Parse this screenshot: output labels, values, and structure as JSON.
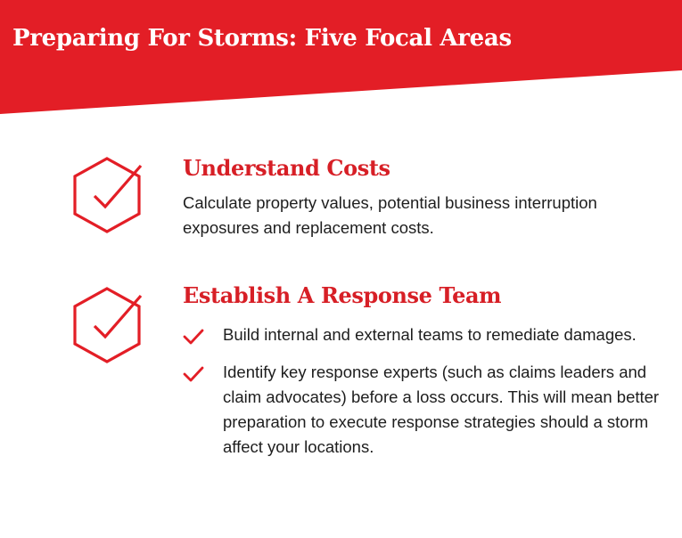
{
  "header": {
    "title": "Preparing For Storms: Five Focal Areas"
  },
  "sections": [
    {
      "icon": "hexagon-check-icon",
      "heading": "Understand Costs",
      "body": "Calculate property values, potential business interruption exposures and replacement costs."
    },
    {
      "icon": "hexagon-check-icon",
      "heading": "Establish A Response Team",
      "bullets": [
        "Build internal and external teams to remediate damages.",
        "Identify key response experts (such as claims leaders and claim advocates) before a loss occurs. This will mean better preparation to execute response strategies should a storm affect your locations."
      ]
    }
  ],
  "colors": {
    "brand_red": "#e31e26",
    "heading_red": "#d71f26",
    "body_text": "#1e1e1e",
    "background": "#ffffff"
  }
}
